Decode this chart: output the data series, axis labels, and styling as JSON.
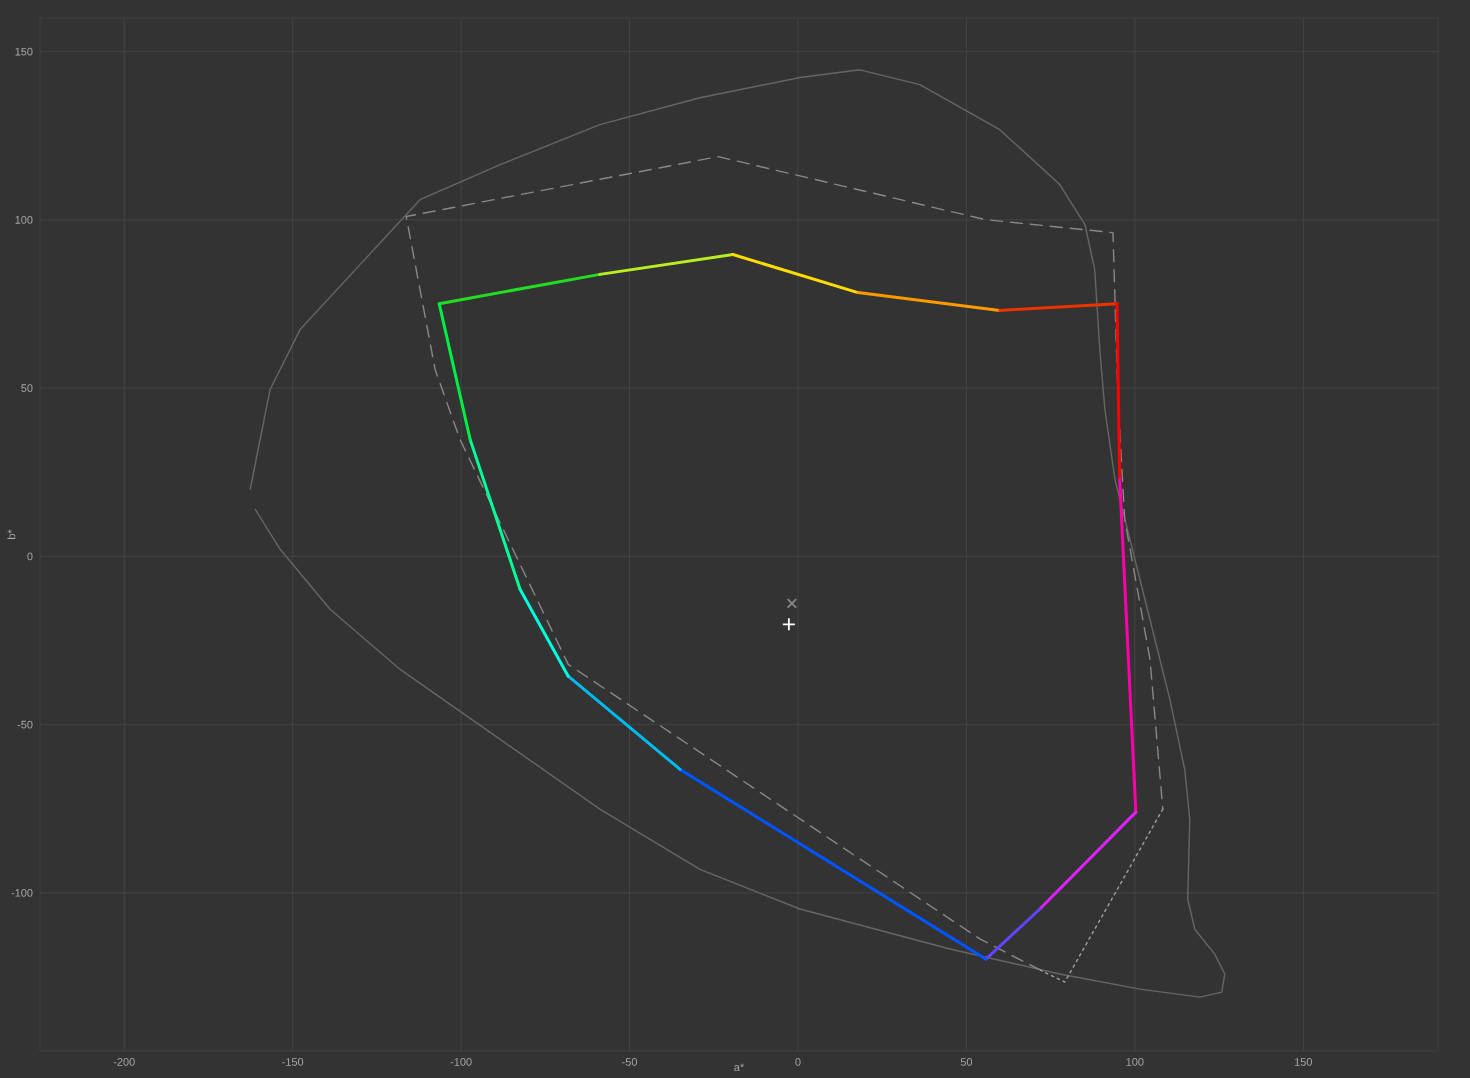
{
  "chart_data": {
    "type": "line",
    "xlabel": "a*",
    "ylabel": "b*",
    "xlim": [
      -225,
      190
    ],
    "ylim": [
      -147,
      160
    ],
    "xticks": [
      -200,
      -150,
      -100,
      -50,
      0,
      50,
      100,
      150
    ],
    "yticks": [
      -100,
      -50,
      0,
      50,
      100,
      150
    ],
    "grid": true,
    "series": [
      {
        "color": "#666666",
        "line_style": "solid",
        "x": [
          -162.6,
          -156.7,
          -147.8,
          -130.0,
          -112.2,
          -88.4,
          -58.8,
          -29.1,
          0.6,
          18.4,
          36.2,
          59.9,
          77.7,
          85.2,
          88.1,
          89.6,
          91.1,
          94.1,
          101.5,
          110.4,
          114.8,
          116.3,
          115.7,
          117.8,
          123.7,
          126.7,
          125.8,
          119.3,
          101.5,
          77.7,
          45.1,
          0.6,
          -29.1,
          -58.8,
          -88.4,
          -118.1,
          -138.9,
          -153.7,
          -161.1
        ],
        "values": [
          19.9,
          49.6,
          67.4,
          86.7,
          106.0,
          116.4,
          128.3,
          136.3,
          142.3,
          144.6,
          140.2,
          126.8,
          110.5,
          98.6,
          85.2,
          61.5,
          43.7,
          22.9,
          -6.8,
          -42.5,
          -63.3,
          -78.1,
          -101.9,
          -110.8,
          -118.2,
          -124.1,
          -129.5,
          -131.0,
          -128.6,
          -124.1,
          -116.7,
          -104.8,
          -93.0,
          -75.1,
          -54.4,
          -33.6,
          -15.7,
          2.1,
          14.0
        ]
      },
      {
        "color": "#888888",
        "line_style": "dashed",
        "x": [
          72.0,
          54.0,
          -68.2,
          -100.3,
          -107.7,
          -116.3,
          -23.7,
          55.5,
          93.5,
          95.0,
          97.0,
          104.5,
          108.3
        ],
        "values": [
          -123.0,
          -113.7,
          -32.1,
          34.7,
          55.5,
          101.0,
          118.8,
          100.1,
          96.2,
          46.6,
          11.0,
          -30.6,
          -75.1
        ]
      },
      {
        "color": "#a0a0a0",
        "line_style": "dotted",
        "x": [
          108.3,
          79.2,
          72.0
        ],
        "values": [
          -75.1,
          -126.5,
          -123.0
        ]
      },
      {
        "color": "#22dd22",
        "x": [
          -106.5,
          -58.8
        ],
        "values": [
          75.1,
          83.8
        ]
      },
      {
        "color": "#bbee22",
        "x": [
          -58.8,
          -19.3
        ],
        "values": [
          83.8,
          89.7
        ]
      },
      {
        "color": "#ffdd00",
        "x": [
          -19.3,
          17.8
        ],
        "values": [
          89.7,
          78.4
        ]
      },
      {
        "color": "#ff9900",
        "x": [
          17.8,
          59.9
        ],
        "values": [
          78.4,
          73.1
        ]
      },
      {
        "color": "#ee3300",
        "x": [
          59.9,
          94.7
        ],
        "values": [
          73.1,
          75.1
        ]
      },
      {
        "color": "#ff0000",
        "x": [
          94.7,
          95.5
        ],
        "values": [
          75.1,
          22.9
        ]
      },
      {
        "color": "#ff00aa",
        "x": [
          95.5,
          100.3
        ],
        "values": [
          22.9,
          -76.0
        ]
      },
      {
        "color": "#dd22ff",
        "x": [
          100.3,
          71.8
        ],
        "values": [
          -76.0,
          -104.8
        ]
      },
      {
        "color": "#6644ff",
        "x": [
          71.8,
          55.8
        ],
        "values": [
          -104.8,
          -119.7
        ]
      },
      {
        "color": "#0055ff",
        "x": [
          55.8,
          -35.0
        ],
        "values": [
          -119.7,
          -63.3
        ]
      },
      {
        "color": "#00bbee",
        "x": [
          -35.0,
          -68.2
        ],
        "values": [
          -63.3,
          -35.6
        ]
      },
      {
        "color": "#00ffdd",
        "x": [
          -68.2,
          -82.5
        ],
        "values": [
          -35.6,
          -9.8
        ]
      },
      {
        "color": "#00ff99",
        "x": [
          -82.5,
          -97.3
        ],
        "values": [
          -9.8,
          34.7
        ]
      },
      {
        "color": "#00ee44",
        "x": [
          -97.3,
          -106.5
        ],
        "values": [
          34.7,
          75.1
        ]
      },
      {
        "type": "scatter",
        "marker": "cross",
        "color": "#888888",
        "x": [
          -1.8
        ],
        "values": [
          -14.0
        ]
      },
      {
        "type": "scatter",
        "marker": "plus",
        "color": "#ffffff",
        "x": [
          -2.7
        ],
        "values": [
          -20.2
        ]
      }
    ]
  }
}
